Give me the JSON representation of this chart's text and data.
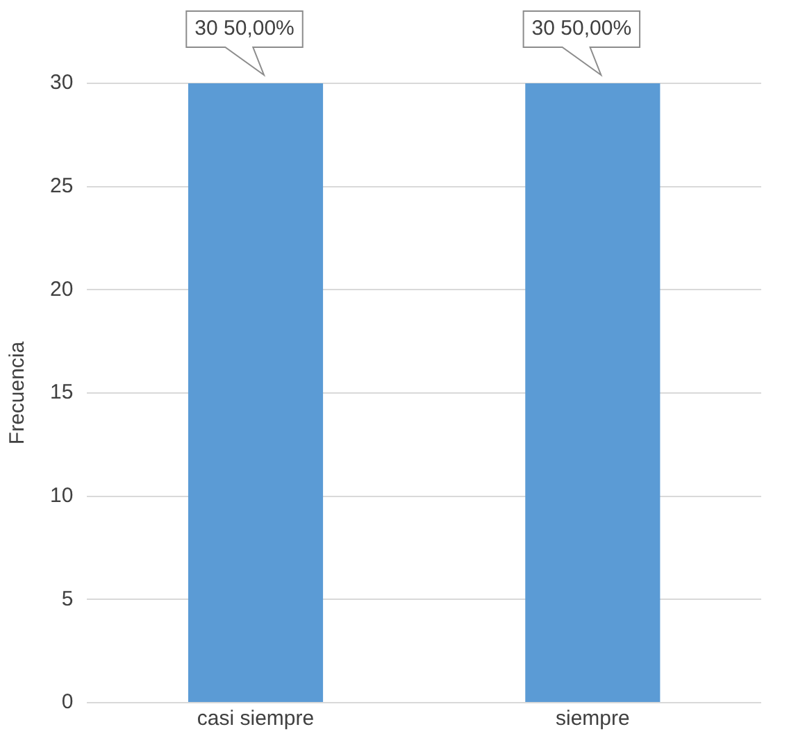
{
  "chart_data": {
    "type": "bar",
    "ylabel": "Frecuencia",
    "categories": [
      "casi siempre",
      "siempre"
    ],
    "values": [
      30,
      30
    ],
    "value_labels": [
      "30 50,00%",
      "30 50,00%"
    ],
    "color": "#5b9bd5",
    "ylim": [
      0,
      30
    ],
    "yticks": [
      0,
      5,
      10,
      15,
      20,
      25,
      30
    ],
    "grid": "y",
    "legend": false
  }
}
